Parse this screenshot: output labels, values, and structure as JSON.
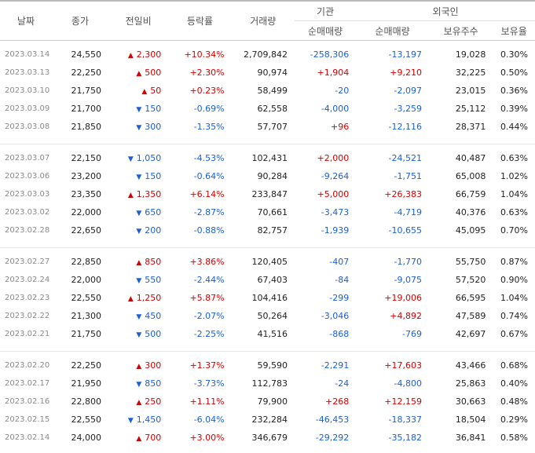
{
  "headers": {
    "date": "날짜",
    "close": "종가",
    "change": "전일비",
    "rate": "등락률",
    "volume": "거래량",
    "institution": "기관",
    "inst_net": "순매매량",
    "foreign": "외국인",
    "foreign_net": "순매매량",
    "holdings": "보유주수",
    "holding_ratio": "보유율"
  },
  "groups": [
    [
      {
        "date": "2023.03.14",
        "close": "24,550",
        "change_dir": "up",
        "change": "2,300",
        "rate": "+10.34%",
        "volume": "2,709,842",
        "inst": "-258,306",
        "foreign": "-13,197",
        "holdings": "19,028",
        "ratio": "0.30%"
      },
      {
        "date": "2023.03.13",
        "close": "22,250",
        "change_dir": "up",
        "change": "500",
        "rate": "+2.30%",
        "volume": "90,974",
        "inst": "+1,904",
        "foreign": "+9,210",
        "holdings": "32,225",
        "ratio": "0.50%"
      },
      {
        "date": "2023.03.10",
        "close": "21,750",
        "change_dir": "up",
        "change": "50",
        "rate": "+0.23%",
        "volume": "58,499",
        "inst": "-20",
        "foreign": "-2,097",
        "holdings": "23,015",
        "ratio": "0.36%"
      },
      {
        "date": "2023.03.09",
        "close": "21,700",
        "change_dir": "down",
        "change": "150",
        "rate": "-0.69%",
        "volume": "62,558",
        "inst": "-4,000",
        "foreign": "-3,259",
        "holdings": "25,112",
        "ratio": "0.39%"
      },
      {
        "date": "2023.03.08",
        "close": "21,850",
        "change_dir": "down",
        "change": "300",
        "rate": "-1.35%",
        "volume": "57,707",
        "inst": "+96",
        "foreign": "-12,116",
        "holdings": "28,371",
        "ratio": "0.44%"
      }
    ],
    [
      {
        "date": "2023.03.07",
        "close": "22,150",
        "change_dir": "down",
        "change": "1,050",
        "rate": "-4.53%",
        "volume": "102,431",
        "inst": "+2,000",
        "foreign": "-24,521",
        "holdings": "40,487",
        "ratio": "0.63%"
      },
      {
        "date": "2023.03.06",
        "close": "23,200",
        "change_dir": "down",
        "change": "150",
        "rate": "-0.64%",
        "volume": "90,284",
        "inst": "-9,264",
        "foreign": "-1,751",
        "holdings": "65,008",
        "ratio": "1.02%"
      },
      {
        "date": "2023.03.03",
        "close": "23,350",
        "change_dir": "up",
        "change": "1,350",
        "rate": "+6.14%",
        "volume": "233,847",
        "inst": "+5,000",
        "foreign": "+26,383",
        "holdings": "66,759",
        "ratio": "1.04%"
      },
      {
        "date": "2023.03.02",
        "close": "22,000",
        "change_dir": "down",
        "change": "650",
        "rate": "-2.87%",
        "volume": "70,661",
        "inst": "-3,473",
        "foreign": "-4,719",
        "holdings": "40,376",
        "ratio": "0.63%"
      },
      {
        "date": "2023.02.28",
        "close": "22,650",
        "change_dir": "down",
        "change": "200",
        "rate": "-0.88%",
        "volume": "82,757",
        "inst": "-1,939",
        "foreign": "-10,655",
        "holdings": "45,095",
        "ratio": "0.70%"
      }
    ],
    [
      {
        "date": "2023.02.27",
        "close": "22,850",
        "change_dir": "up",
        "change": "850",
        "rate": "+3.86%",
        "volume": "120,405",
        "inst": "-407",
        "foreign": "-1,770",
        "holdings": "55,750",
        "ratio": "0.87%"
      },
      {
        "date": "2023.02.24",
        "close": "22,000",
        "change_dir": "down",
        "change": "550",
        "rate": "-2.44%",
        "volume": "67,403",
        "inst": "-84",
        "foreign": "-9,075",
        "holdings": "57,520",
        "ratio": "0.90%"
      },
      {
        "date": "2023.02.23",
        "close": "22,550",
        "change_dir": "up",
        "change": "1,250",
        "rate": "+5.87%",
        "volume": "104,416",
        "inst": "-299",
        "foreign": "+19,006",
        "holdings": "66,595",
        "ratio": "1.04%"
      },
      {
        "date": "2023.02.22",
        "close": "21,300",
        "change_dir": "down",
        "change": "450",
        "rate": "-2.07%",
        "volume": "50,264",
        "inst": "-3,046",
        "foreign": "+4,892",
        "holdings": "47,589",
        "ratio": "0.74%"
      },
      {
        "date": "2023.02.21",
        "close": "21,750",
        "change_dir": "down",
        "change": "500",
        "rate": "-2.25%",
        "volume": "41,516",
        "inst": "-868",
        "foreign": "-769",
        "holdings": "42,697",
        "ratio": "0.67%"
      }
    ],
    [
      {
        "date": "2023.02.20",
        "close": "22,250",
        "change_dir": "up",
        "change": "300",
        "rate": "+1.37%",
        "volume": "59,590",
        "inst": "-2,291",
        "foreign": "+17,603",
        "holdings": "43,466",
        "ratio": "0.68%"
      },
      {
        "date": "2023.02.17",
        "close": "21,950",
        "change_dir": "down",
        "change": "850",
        "rate": "-3.73%",
        "volume": "112,783",
        "inst": "-24",
        "foreign": "-4,800",
        "holdings": "25,863",
        "ratio": "0.40%"
      },
      {
        "date": "2023.02.16",
        "close": "22,800",
        "change_dir": "up",
        "change": "250",
        "rate": "+1.11%",
        "volume": "79,900",
        "inst": "+268",
        "foreign": "+12,159",
        "holdings": "30,663",
        "ratio": "0.48%"
      },
      {
        "date": "2023.02.15",
        "close": "22,550",
        "change_dir": "down",
        "change": "1,450",
        "rate": "-6.04%",
        "volume": "232,284",
        "inst": "-46,453",
        "foreign": "-18,337",
        "holdings": "18,504",
        "ratio": "0.29%"
      },
      {
        "date": "2023.02.14",
        "close": "24,000",
        "change_dir": "up",
        "change": "700",
        "rate": "+3.00%",
        "volume": "346,679",
        "inst": "-29,292",
        "foreign": "-35,182",
        "holdings": "36,841",
        "ratio": "0.58%"
      }
    ]
  ],
  "icons": {
    "up": "triangle-up-icon",
    "down": "triangle-down-icon"
  },
  "colors": {
    "up": "#d60000",
    "down": "#1c5fd6"
  }
}
